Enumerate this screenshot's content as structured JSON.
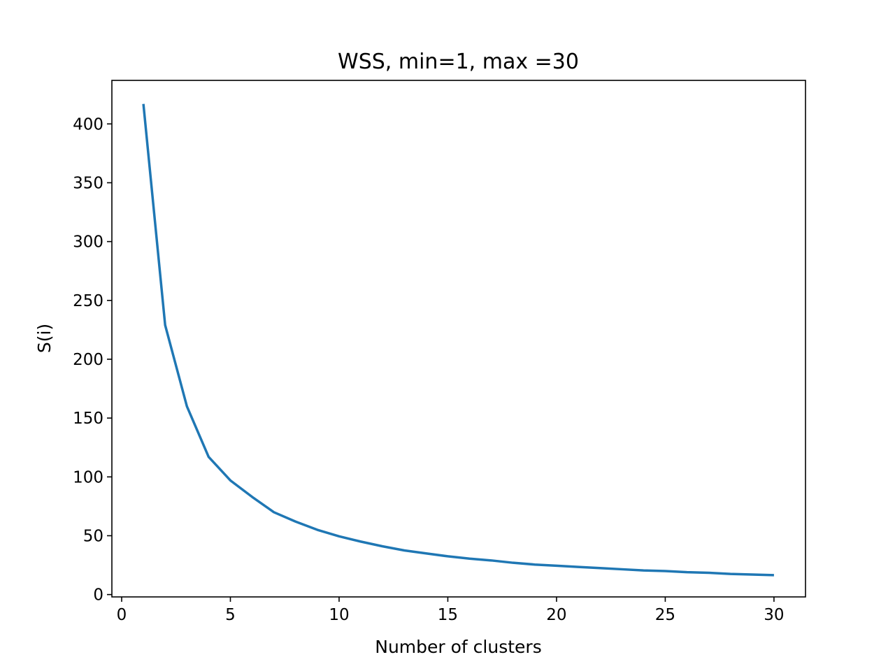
{
  "chart_data": {
    "type": "line",
    "title": "WSS, min=1, max =30",
    "xlabel": "Number of clusters",
    "ylabel": "S(i)",
    "xlim": [
      -0.45,
      31.45
    ],
    "ylim": [
      -2.0,
      437.0
    ],
    "xticks": [
      0,
      5,
      10,
      15,
      20,
      25,
      30
    ],
    "yticks": [
      0,
      50,
      100,
      150,
      200,
      250,
      300,
      350,
      400
    ],
    "grid": false,
    "line_color": "#1f77b4",
    "series": [
      {
        "x": [
          1,
          2,
          3,
          4,
          5,
          6,
          7,
          8,
          9,
          10,
          11,
          12,
          13,
          14,
          15,
          16,
          17,
          18,
          19,
          20,
          21,
          22,
          23,
          24,
          25,
          26,
          27,
          28,
          29,
          30
        ],
        "values": [
          417,
          229,
          160,
          117,
          97,
          83,
          70,
          62,
          55,
          49.5,
          45,
          41,
          37.5,
          35,
          32.5,
          30.5,
          29,
          27,
          25.5,
          24.5,
          23.5,
          22.5,
          21.5,
          20.5,
          20,
          19,
          18.5,
          17.5,
          17,
          16.5
        ]
      }
    ]
  }
}
